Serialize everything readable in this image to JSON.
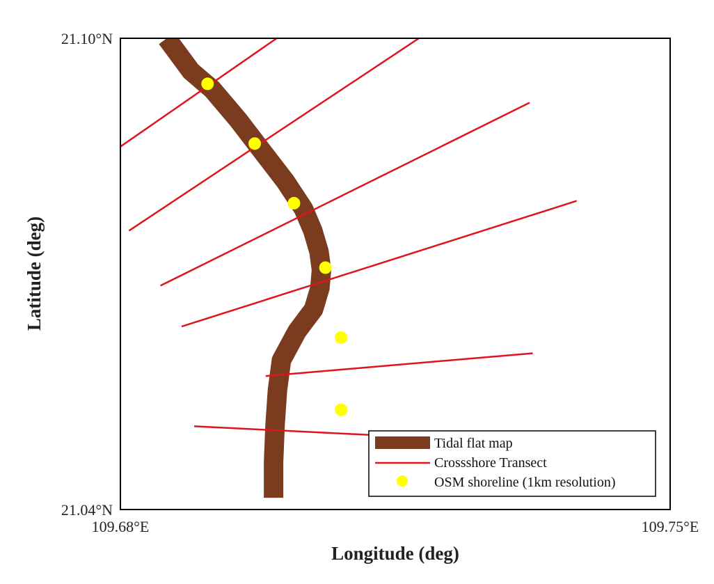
{
  "map": {
    "axes": {
      "lon_range": [
        109.68,
        109.75
      ],
      "lat_range": [
        21.04,
        21.1
      ],
      "xlabel": "Longitude (deg)",
      "ylabel": "Latitude (deg)",
      "x_ticks": [
        "109.68°E",
        "109.75°E"
      ],
      "y_ticks": [
        "21.10°N",
        "21.04°N"
      ]
    },
    "legend": {
      "position": "bottom-right",
      "items": [
        {
          "label": "Tidal flat map",
          "color": "#7a3b1f",
          "symbol": "patch"
        },
        {
          "label": "Crossshore Transect",
          "color": "#e0141e",
          "symbol": "line"
        },
        {
          "label": "OSM shoreline (1km resolution)",
          "color": "#ffff00",
          "symbol": "point"
        }
      ]
    },
    "colors": {
      "tidal_flat": "#7a3b1f",
      "transect": "#e0141e",
      "shoreline_point": "#ffff00",
      "frame": "#000000"
    },
    "tidal_flat_centerline": [
      [
        109.6859,
        21.1
      ],
      [
        109.689,
        21.0958
      ],
      [
        109.6917,
        21.0935
      ],
      [
        109.695,
        21.0896
      ],
      [
        109.698,
        21.0857
      ],
      [
        109.701,
        21.0818
      ],
      [
        109.7033,
        21.0783
      ],
      [
        109.7045,
        21.0755
      ],
      [
        109.7053,
        21.0728
      ],
      [
        109.7056,
        21.0705
      ],
      [
        109.7054,
        21.0682
      ],
      [
        109.7046,
        21.0655
      ],
      [
        109.7025,
        21.0627
      ],
      [
        109.7005,
        21.059
      ],
      [
        109.7,
        21.0552
      ],
      [
        109.6997,
        21.0508
      ],
      [
        109.6995,
        21.046
      ],
      [
        109.6995,
        21.0415
      ]
    ],
    "transects": [
      [
        [
          109.68,
          21.0862
        ],
        [
          109.6999,
          21.1
        ]
      ],
      [
        [
          109.6811,
          21.0755
        ],
        [
          109.718,
          21.1
        ]
      ],
      [
        [
          109.6851,
          21.0685
        ],
        [
          109.7321,
          21.0918
        ]
      ],
      [
        [
          109.6878,
          21.0633
        ],
        [
          109.7381,
          21.0793
        ]
      ],
      [
        [
          109.6985,
          21.057
        ],
        [
          109.7325,
          21.0599
        ]
      ],
      [
        [
          109.6894,
          21.0506
        ],
        [
          109.7422,
          21.048
        ]
      ]
    ],
    "shoreline_points": [
      [
        109.6911,
        21.0942
      ],
      [
        109.6971,
        21.0866
      ],
      [
        109.7021,
        21.079
      ],
      [
        109.7061,
        21.0708
      ],
      [
        109.7081,
        21.0619
      ],
      [
        109.7081,
        21.0527
      ]
    ]
  }
}
